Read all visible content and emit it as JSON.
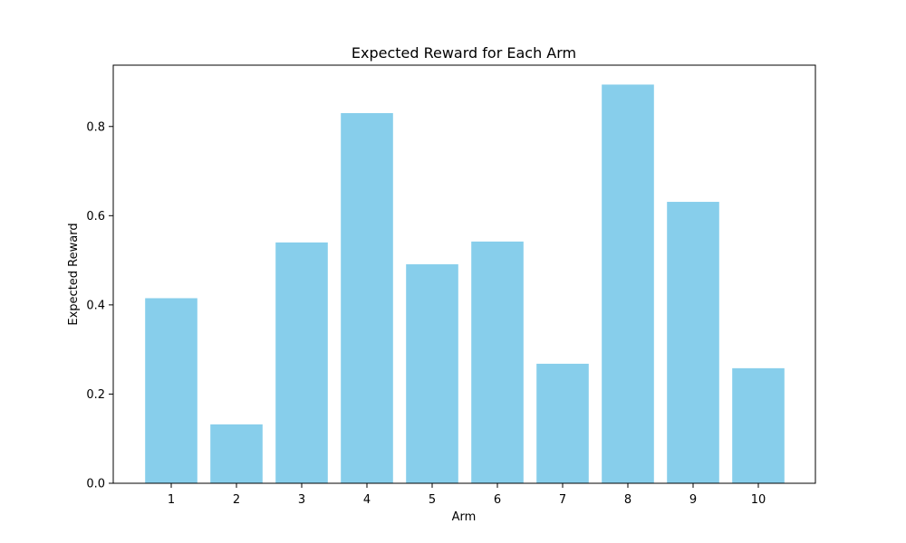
{
  "chart_data": {
    "type": "bar",
    "title": "Expected Reward for Each Arm",
    "xlabel": "Arm",
    "ylabel": "Expected Reward",
    "categories": [
      "1",
      "2",
      "3",
      "4",
      "5",
      "6",
      "7",
      "8",
      "9",
      "10"
    ],
    "values": [
      0.415,
      0.132,
      0.54,
      0.83,
      0.491,
      0.542,
      0.268,
      0.894,
      0.631,
      0.258
    ],
    "ylim": [
      0,
      0.9375
    ],
    "yticks": [
      0.0,
      0.2,
      0.4,
      0.6,
      0.8
    ],
    "ytick_labels": [
      "0.0",
      "0.2",
      "0.4",
      "0.6",
      "0.8"
    ],
    "bar_color": "#87ceeb",
    "grid": false,
    "legend": "none"
  }
}
